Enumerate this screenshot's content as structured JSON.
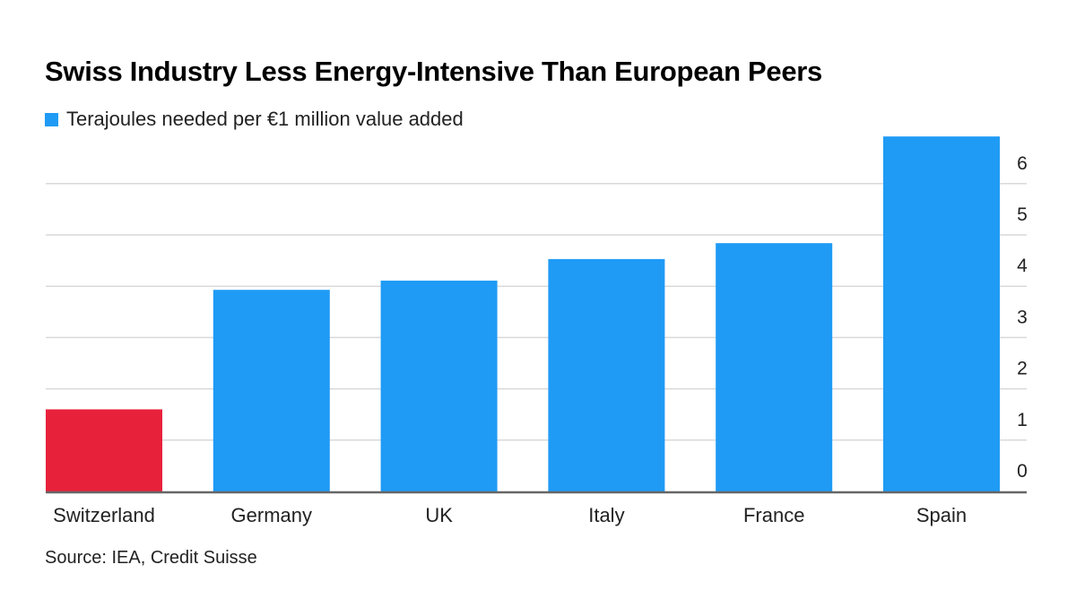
{
  "chart_data": {
    "type": "bar",
    "title": "Swiss Industry Less Energy-Intensive Than European Peers",
    "legend": "Terajoules needed per €1 million value added",
    "categories": [
      "Switzerland",
      "Germany",
      "UK",
      "Italy",
      "France",
      "Spain"
    ],
    "values": [
      1.6,
      3.93,
      4.11,
      4.53,
      4.84,
      6.92
    ],
    "colors": [
      "#e8213b",
      "#1f9bf5",
      "#1f9bf5",
      "#1f9bf5",
      "#1f9bf5",
      "#1f9bf5"
    ],
    "series_color": "#1f9bf5",
    "highlight_color": "#e8213b",
    "yticks": [
      0,
      1,
      2,
      3,
      4,
      5,
      6
    ],
    "ylim": [
      0,
      6.92
    ],
    "y_axis_side": "right",
    "grid": true,
    "legend_position": "top-left",
    "source": "Source: IEA, Credit Suisse"
  }
}
